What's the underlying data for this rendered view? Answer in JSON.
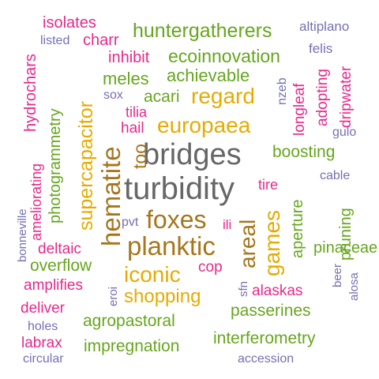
{
  "palette": {
    "gray": "#666666",
    "gold": "#E6AB02",
    "brown": "#A6761D",
    "green": "#66A61E",
    "pink": "#E7298A",
    "purple": "#7570B3"
  },
  "words": [
    {
      "text": "bridges",
      "color": "gray"
    },
    {
      "text": "turbidity",
      "color": "gray"
    },
    {
      "text": "hematite",
      "color": "brown"
    },
    {
      "text": "planktic",
      "color": "brown"
    },
    {
      "text": "foxes",
      "color": "brown"
    },
    {
      "text": "supercapacitor",
      "color": "gold"
    },
    {
      "text": "europaea",
      "color": "gold"
    },
    {
      "text": "regard",
      "color": "gold"
    },
    {
      "text": "iconic",
      "color": "gold"
    },
    {
      "text": "shopping",
      "color": "gold"
    },
    {
      "text": "games",
      "color": "gold"
    },
    {
      "text": "areal",
      "color": "brown"
    },
    {
      "text": "huntergatherers",
      "color": "green"
    },
    {
      "text": "ecoinnovation",
      "color": "green"
    },
    {
      "text": "achievable",
      "color": "green"
    },
    {
      "text": "meles",
      "color": "green"
    },
    {
      "text": "acari",
      "color": "green"
    },
    {
      "text": "photogrammetry",
      "color": "green"
    },
    {
      "text": "boosting",
      "color": "green"
    },
    {
      "text": "aperture",
      "color": "green"
    },
    {
      "text": "pinaceae",
      "color": "green"
    },
    {
      "text": "pruning",
      "color": "green"
    },
    {
      "text": "overflow",
      "color": "green"
    },
    {
      "text": "agropastoral",
      "color": "green"
    },
    {
      "text": "impregnation",
      "color": "green"
    },
    {
      "text": "interferometry",
      "color": "green"
    },
    {
      "text": "passerines",
      "color": "green"
    },
    {
      "text": "isolates",
      "color": "pink"
    },
    {
      "text": "charr",
      "color": "pink"
    },
    {
      "text": "inhibit",
      "color": "pink"
    },
    {
      "text": "hydrochars",
      "color": "pink"
    },
    {
      "text": "tilia",
      "color": "pink"
    },
    {
      "text": "hail",
      "color": "pink"
    },
    {
      "text": "too",
      "color": "brown"
    },
    {
      "text": "longleaf",
      "color": "pink"
    },
    {
      "text": "adopting",
      "color": "pink"
    },
    {
      "text": "dripwater",
      "color": "pink"
    },
    {
      "text": "ameliorating",
      "color": "pink"
    },
    {
      "text": "tire",
      "color": "pink"
    },
    {
      "text": "ili",
      "color": "pink"
    },
    {
      "text": "cop",
      "color": "pink"
    },
    {
      "text": "deltaic",
      "color": "pink"
    },
    {
      "text": "amplifies",
      "color": "pink"
    },
    {
      "text": "alaskas",
      "color": "pink"
    },
    {
      "text": "deliver",
      "color": "pink"
    },
    {
      "text": "labrax",
      "color": "pink"
    },
    {
      "text": "listed",
      "color": "purple"
    },
    {
      "text": "altiplano",
      "color": "purple"
    },
    {
      "text": "felis",
      "color": "purple"
    },
    {
      "text": "sox",
      "color": "purple"
    },
    {
      "text": "nzeb",
      "color": "purple"
    },
    {
      "text": "gulo",
      "color": "purple"
    },
    {
      "text": "cable",
      "color": "purple"
    },
    {
      "text": "pvt",
      "color": "purple"
    },
    {
      "text": "bonneville",
      "color": "purple"
    },
    {
      "text": "eroi",
      "color": "purple"
    },
    {
      "text": "sfn",
      "color": "purple"
    },
    {
      "text": "beer",
      "color": "purple"
    },
    {
      "text": "alosa",
      "color": "purple"
    },
    {
      "text": "holes",
      "color": "purple"
    },
    {
      "text": "circular",
      "color": "purple"
    },
    {
      "text": "accession",
      "color": "purple"
    }
  ]
}
